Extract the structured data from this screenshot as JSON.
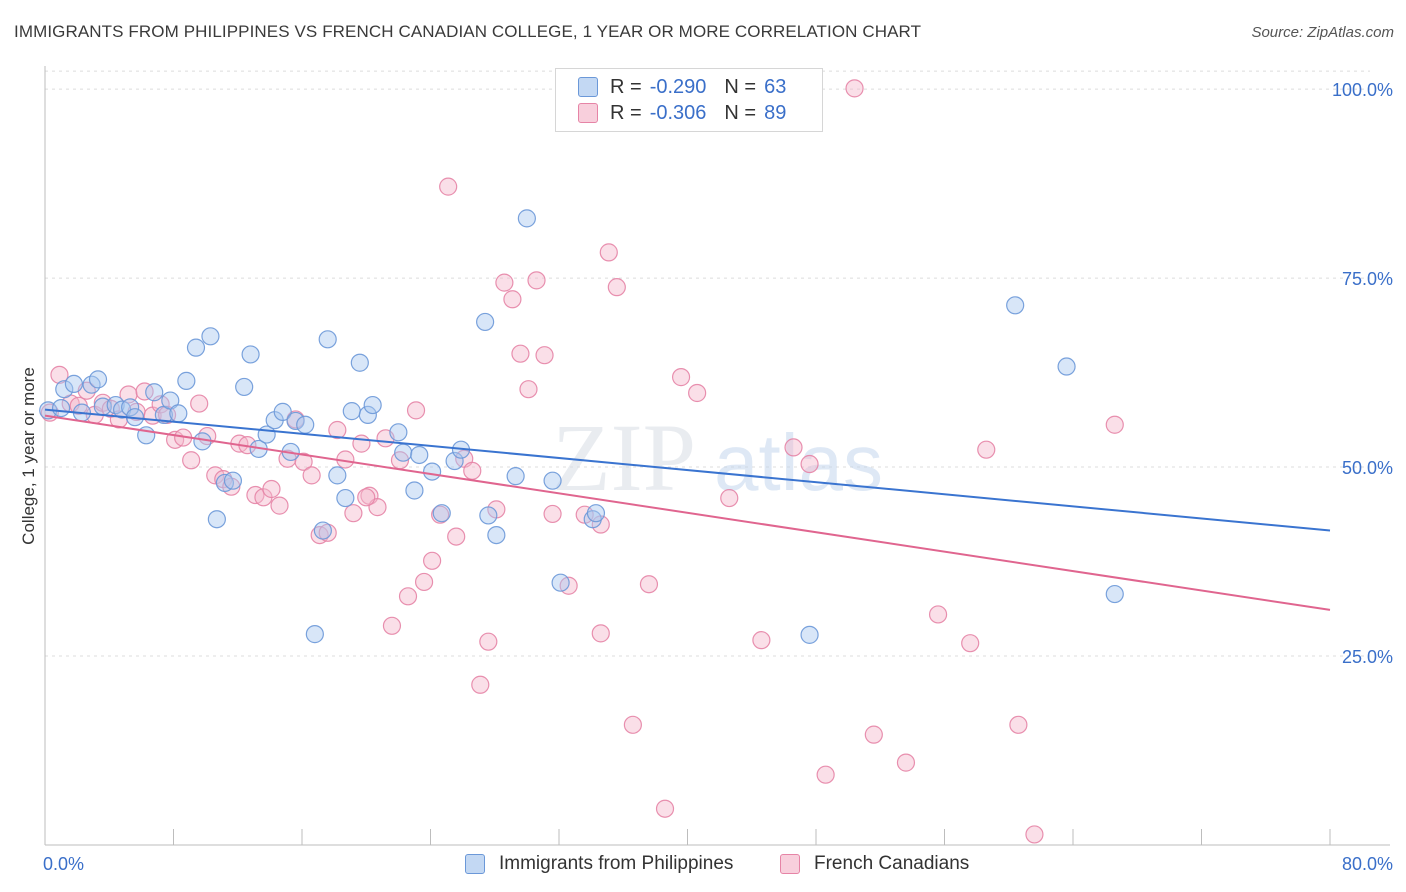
{
  "title": "IMMIGRANTS FROM PHILIPPINES VS FRENCH CANADIAN COLLEGE, 1 YEAR OR MORE CORRELATION CHART",
  "source": "Source: ZipAtlas.com",
  "watermark": {
    "zip": "ZIP",
    "atlas": "atlas"
  },
  "legend": {
    "r_label": "R =",
    "n_label": "N =",
    "series": [
      {
        "r": "-0.290",
        "n": "63"
      },
      {
        "r": "-0.306",
        "n": "89"
      }
    ]
  },
  "colors": {
    "blue_fill": "#a9c8ef",
    "blue_stroke": "#6b98d8",
    "blue_line": "#3a74d0",
    "pink_fill": "#f4b8cb",
    "pink_stroke": "#e684a6",
    "pink_line": "#e0658f",
    "tick_label": "#3a6fc9"
  },
  "chart_data": {
    "type": "scatter",
    "title": "IMMIGRANTS FROM PHILIPPINES VS FRENCH CANADIAN COLLEGE, 1 YEAR OR MORE CORRELATION CHART",
    "xlabel": "",
    "ylabel": "College, 1 year or more",
    "xlim": [
      0,
      80
    ],
    "ylim": [
      0,
      102
    ],
    "x_tick_labels": [
      "0.0%",
      "80.0%"
    ],
    "y_ticks": [
      25,
      50,
      75,
      100
    ],
    "y_tick_labels": [
      "25.0%",
      "50.0%",
      "75.0%",
      "100.0%"
    ],
    "grid": true,
    "legend_position": "top-center",
    "series": [
      {
        "name": "Immigrants from Philippines",
        "r": -0.29,
        "n": 63,
        "trend": [
          [
            0,
            57.6
          ],
          [
            80,
            41.6
          ]
        ],
        "points": [
          [
            0.2,
            57.5
          ],
          [
            1.2,
            60.3
          ],
          [
            1.8,
            61.0
          ],
          [
            2.3,
            57.2
          ],
          [
            2.9,
            60.9
          ],
          [
            3.3,
            61.6
          ],
          [
            3.6,
            58.0
          ],
          [
            4.4,
            58.2
          ],
          [
            4.8,
            57.6
          ],
          [
            5.3,
            57.9
          ],
          [
            5.6,
            56.6
          ],
          [
            6.3,
            54.2
          ],
          [
            6.8,
            59.9
          ],
          [
            7.4,
            56.9
          ],
          [
            7.8,
            58.8
          ],
          [
            8.3,
            57.1
          ],
          [
            8.8,
            61.4
          ],
          [
            9.4,
            65.8
          ],
          [
            9.8,
            53.4
          ],
          [
            10.3,
            67.3
          ],
          [
            10.7,
            43.1
          ],
          [
            11.2,
            47.9
          ],
          [
            11.7,
            48.2
          ],
          [
            12.4,
            60.6
          ],
          [
            12.8,
            64.9
          ],
          [
            13.3,
            52.4
          ],
          [
            13.8,
            54.3
          ],
          [
            14.3,
            56.2
          ],
          [
            14.8,
            57.3
          ],
          [
            15.3,
            52.0
          ],
          [
            15.6,
            56.1
          ],
          [
            16.2,
            55.6
          ],
          [
            16.8,
            27.9
          ],
          [
            17.3,
            41.6
          ],
          [
            17.6,
            66.9
          ],
          [
            18.2,
            48.9
          ],
          [
            18.7,
            45.9
          ],
          [
            19.1,
            57.4
          ],
          [
            19.6,
            63.8
          ],
          [
            20.1,
            56.9
          ],
          [
            20.4,
            58.2
          ],
          [
            22.0,
            54.6
          ],
          [
            22.3,
            51.9
          ],
          [
            23.0,
            46.9
          ],
          [
            23.3,
            51.6
          ],
          [
            24.1,
            49.4
          ],
          [
            24.7,
            43.9
          ],
          [
            25.5,
            50.8
          ],
          [
            25.9,
            52.3
          ],
          [
            27.4,
            69.2
          ],
          [
            27.6,
            43.6
          ],
          [
            28.1,
            41.0
          ],
          [
            29.3,
            48.8
          ],
          [
            30.0,
            82.9
          ],
          [
            31.6,
            48.2
          ],
          [
            32.1,
            34.7
          ],
          [
            34.1,
            43.1
          ],
          [
            34.3,
            43.9
          ],
          [
            47.6,
            27.8
          ],
          [
            60.4,
            71.4
          ],
          [
            63.6,
            63.3
          ],
          [
            66.6,
            33.2
          ],
          [
            1.0,
            57.8
          ]
        ]
      },
      {
        "name": "French Canadians",
        "r": -0.306,
        "n": 89,
        "trend": [
          [
            0,
            56.8
          ],
          [
            80,
            31.1
          ]
        ],
        "points": [
          [
            0.3,
            57.2
          ],
          [
            0.9,
            62.2
          ],
          [
            1.6,
            58.4
          ],
          [
            2.1,
            58.1
          ],
          [
            2.6,
            60.1
          ],
          [
            3.1,
            56.9
          ],
          [
            3.6,
            58.5
          ],
          [
            4.1,
            57.7
          ],
          [
            4.6,
            56.3
          ],
          [
            5.2,
            59.6
          ],
          [
            5.7,
            57.3
          ],
          [
            6.2,
            60.0
          ],
          [
            6.7,
            56.8
          ],
          [
            7.2,
            58.3
          ],
          [
            7.6,
            56.9
          ],
          [
            8.1,
            53.6
          ],
          [
            8.6,
            53.9
          ],
          [
            9.1,
            50.9
          ],
          [
            9.6,
            58.4
          ],
          [
            10.1,
            54.1
          ],
          [
            10.6,
            48.9
          ],
          [
            11.1,
            48.4
          ],
          [
            11.6,
            47.4
          ],
          [
            12.1,
            53.1
          ],
          [
            12.6,
            52.9
          ],
          [
            13.1,
            46.3
          ],
          [
            13.6,
            46.0
          ],
          [
            14.1,
            47.1
          ],
          [
            14.6,
            44.9
          ],
          [
            15.1,
            51.1
          ],
          [
            15.6,
            56.3
          ],
          [
            16.1,
            50.7
          ],
          [
            16.6,
            48.9
          ],
          [
            17.1,
            41.0
          ],
          [
            17.6,
            41.3
          ],
          [
            18.2,
            54.9
          ],
          [
            18.7,
            51.0
          ],
          [
            19.2,
            43.9
          ],
          [
            19.7,
            53.1
          ],
          [
            20.2,
            46.2
          ],
          [
            20.7,
            44.7
          ],
          [
            21.2,
            53.8
          ],
          [
            21.6,
            29.0
          ],
          [
            22.1,
            50.9
          ],
          [
            22.6,
            32.9
          ],
          [
            23.1,
            57.5
          ],
          [
            23.6,
            34.8
          ],
          [
            24.1,
            37.6
          ],
          [
            24.6,
            43.7
          ],
          [
            25.1,
            87.1
          ],
          [
            25.6,
            40.8
          ],
          [
            26.1,
            51.1
          ],
          [
            26.6,
            49.5
          ],
          [
            27.1,
            21.2
          ],
          [
            27.6,
            26.9
          ],
          [
            28.1,
            44.4
          ],
          [
            28.6,
            74.4
          ],
          [
            29.1,
            72.2
          ],
          [
            29.6,
            65.0
          ],
          [
            30.1,
            60.3
          ],
          [
            30.6,
            74.7
          ],
          [
            31.1,
            64.8
          ],
          [
            31.6,
            43.8
          ],
          [
            32.6,
            34.3
          ],
          [
            33.6,
            43.7
          ],
          [
            34.6,
            42.4
          ],
          [
            35.1,
            78.4
          ],
          [
            35.6,
            73.8
          ],
          [
            36.6,
            15.9
          ],
          [
            37.6,
            34.5
          ],
          [
            38.6,
            4.8
          ],
          [
            39.6,
            61.9
          ],
          [
            40.6,
            59.8
          ],
          [
            42.6,
            45.9
          ],
          [
            44.6,
            27.1
          ],
          [
            46.6,
            52.6
          ],
          [
            47.6,
            50.4
          ],
          [
            48.6,
            9.3
          ],
          [
            50.4,
            100.1
          ],
          [
            51.6,
            14.6
          ],
          [
            53.6,
            10.9
          ],
          [
            55.6,
            30.5
          ],
          [
            57.6,
            26.7
          ],
          [
            58.6,
            52.3
          ],
          [
            60.6,
            15.9
          ],
          [
            61.6,
            1.4
          ],
          [
            66.6,
            55.6
          ],
          [
            34.6,
            28.0
          ],
          [
            20.0,
            46.0
          ]
        ]
      }
    ]
  },
  "bottom_legend": [
    "Immigrants from Philippines",
    "French Canadians"
  ]
}
